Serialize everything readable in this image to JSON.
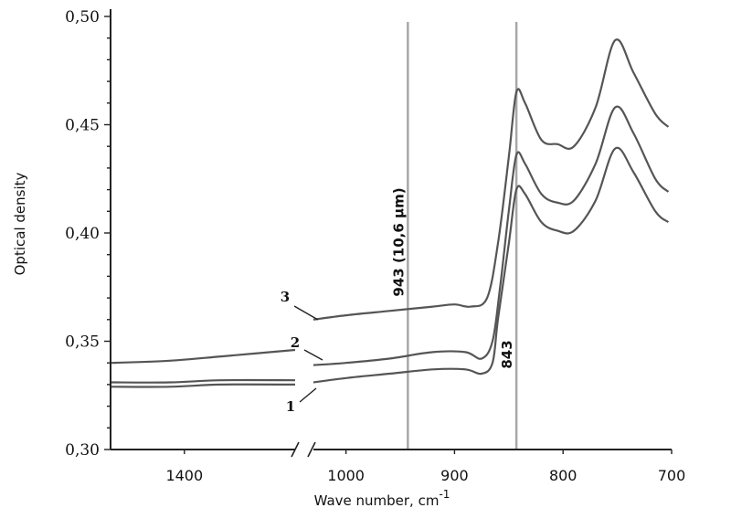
{
  "chart_data": {
    "type": "line",
    "xlabel": "Wave number, cm",
    "xlabel_sup": "-1",
    "ylabel": "Optical density",
    "ylim": [
      0.3,
      0.5
    ],
    "y_ticks": [
      "0,30",
      "0,35",
      "0,40",
      "0,45",
      "0,50"
    ],
    "y_tick_values": [
      0.3,
      0.35,
      0.4,
      0.45,
      0.5
    ],
    "x_axis_broken": true,
    "x_segment_left": [
      1500,
      1250
    ],
    "x_segment_right": [
      1030,
      700
    ],
    "x_ticks": [
      "1400",
      "1000",
      "900",
      "800",
      "700"
    ],
    "x_tick_values": [
      1400,
      1000,
      900,
      800,
      700
    ],
    "vertical_lines": [
      {
        "x": 943,
        "label": "943 (10,6 µm)"
      },
      {
        "x": 843,
        "label": "843"
      }
    ],
    "series": [
      {
        "name": "1",
        "points": [
          [
            1500,
            0.329
          ],
          [
            1420,
            0.329
          ],
          [
            1350,
            0.33
          ],
          [
            1250,
            0.33
          ],
          [
            1030,
            0.331
          ],
          [
            1000,
            0.333
          ],
          [
            960,
            0.335
          ],
          [
            920,
            0.337
          ],
          [
            890,
            0.337
          ],
          [
            875,
            0.335
          ],
          [
            865,
            0.34
          ],
          [
            860,
            0.36
          ],
          [
            850,
            0.395
          ],
          [
            843,
            0.42
          ],
          [
            835,
            0.418
          ],
          [
            820,
            0.405
          ],
          [
            805,
            0.401
          ],
          [
            790,
            0.401
          ],
          [
            770,
            0.415
          ],
          [
            752,
            0.439
          ],
          [
            735,
            0.428
          ],
          [
            715,
            0.41
          ],
          [
            703,
            0.405
          ]
        ]
      },
      {
        "name": "2",
        "points": [
          [
            1500,
            0.331
          ],
          [
            1420,
            0.331
          ],
          [
            1350,
            0.332
          ],
          [
            1250,
            0.332
          ],
          [
            1030,
            0.339
          ],
          [
            1000,
            0.34
          ],
          [
            960,
            0.342
          ],
          [
            920,
            0.345
          ],
          [
            890,
            0.345
          ],
          [
            875,
            0.342
          ],
          [
            865,
            0.35
          ],
          [
            858,
            0.375
          ],
          [
            850,
            0.41
          ],
          [
            843,
            0.436
          ],
          [
            835,
            0.432
          ],
          [
            820,
            0.418
          ],
          [
            805,
            0.414
          ],
          [
            790,
            0.415
          ],
          [
            770,
            0.432
          ],
          [
            752,
            0.458
          ],
          [
            735,
            0.446
          ],
          [
            715,
            0.425
          ],
          [
            703,
            0.419
          ]
        ]
      },
      {
        "name": "3",
        "points": [
          [
            1500,
            0.34
          ],
          [
            1420,
            0.341
          ],
          [
            1350,
            0.343
          ],
          [
            1250,
            0.346
          ],
          [
            1030,
            0.36
          ],
          [
            1000,
            0.362
          ],
          [
            960,
            0.364
          ],
          [
            920,
            0.366
          ],
          [
            900,
            0.367
          ],
          [
            885,
            0.366
          ],
          [
            870,
            0.37
          ],
          [
            860,
            0.395
          ],
          [
            850,
            0.435
          ],
          [
            843,
            0.465
          ],
          [
            835,
            0.46
          ],
          [
            820,
            0.443
          ],
          [
            805,
            0.441
          ],
          [
            790,
            0.44
          ],
          [
            770,
            0.458
          ],
          [
            752,
            0.489
          ],
          [
            735,
            0.474
          ],
          [
            715,
            0.455
          ],
          [
            703,
            0.449
          ]
        ]
      }
    ],
    "curve_labels": [
      {
        "series": "3",
        "text": "3"
      },
      {
        "series": "2",
        "text": "2"
      },
      {
        "series": "1",
        "text": "1"
      }
    ]
  }
}
